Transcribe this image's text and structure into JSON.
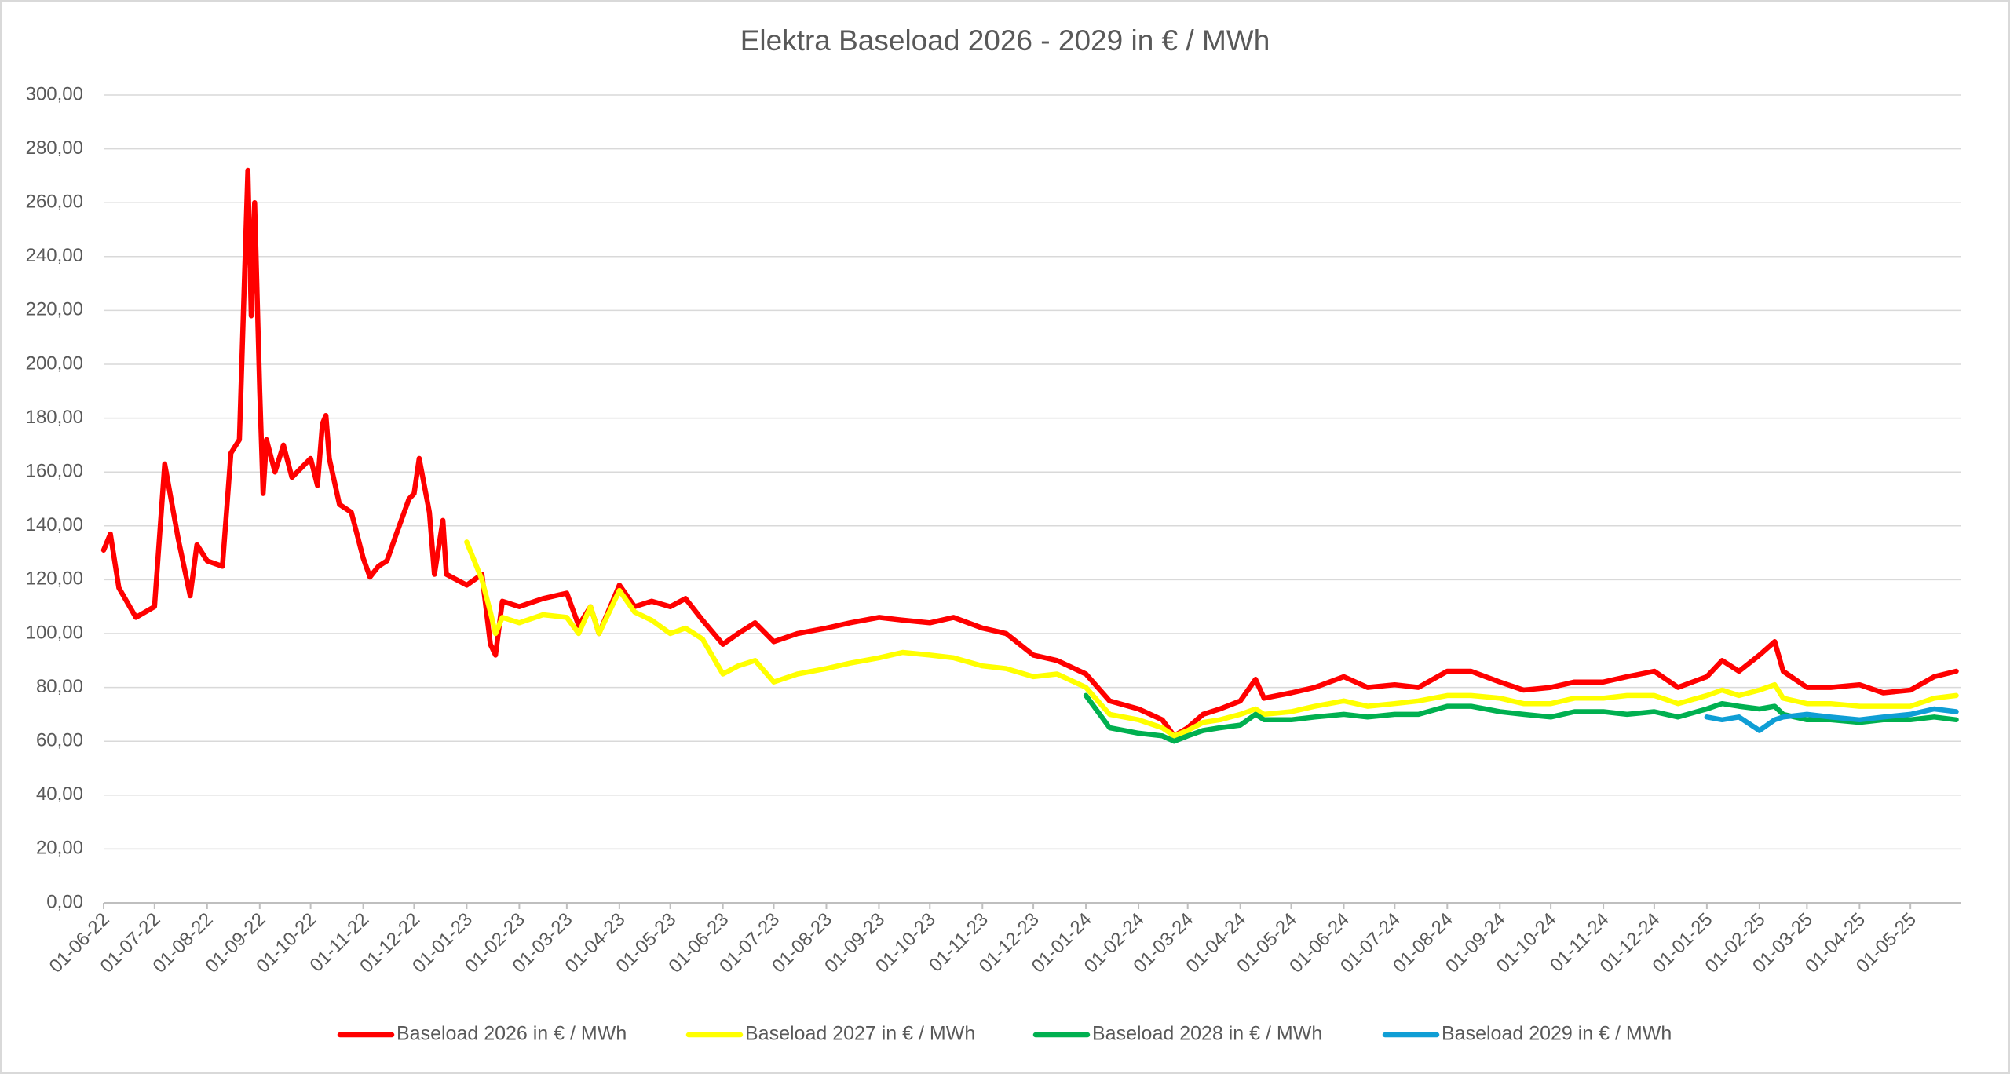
{
  "chart_data": {
    "type": "line",
    "title": "Elektra Baseload 2026 - 2029 in € / MWh",
    "x": [
      "01-06-22",
      "05-06-22",
      "10-06-22",
      "20-06-22",
      "01-07-22",
      "07-07-22",
      "15-07-22",
      "22-07-22",
      "26-07-22",
      "01-08-22",
      "10-08-22",
      "15-08-22",
      "20-08-22",
      "25-08-22",
      "27-08-22",
      "29-08-22",
      "01-09-22",
      "03-09-22",
      "05-09-22",
      "10-09-22",
      "15-09-22",
      "20-09-22",
      "01-10-22",
      "05-10-22",
      "08-10-22",
      "10-10-22",
      "12-10-22",
      "18-10-22",
      "25-10-22",
      "01-11-22",
      "05-11-22",
      "10-11-22",
      "15-11-22",
      "20-11-22",
      "28-11-22",
      "01-12-22",
      "04-12-22",
      "10-12-22",
      "13-12-22",
      "18-12-22",
      "20-12-22",
      "01-01-23",
      "10-01-23",
      "15-01-23",
      "18-01-23",
      "22-01-23",
      "01-02-23",
      "15-02-23",
      "01-03-23",
      "08-03-23",
      "15-03-23",
      "20-03-23",
      "01-04-23",
      "10-04-23",
      "20-04-23",
      "01-05-23",
      "10-05-23",
      "20-05-23",
      "01-06-23",
      "10-06-23",
      "20-06-23",
      "01-07-23",
      "15-07-23",
      "01-08-23",
      "15-08-23",
      "01-09-23",
      "15-09-23",
      "01-10-23",
      "15-10-23",
      "01-11-23",
      "15-11-23",
      "01-12-23",
      "15-12-23",
      "01-01-24",
      "15-01-24",
      "01-02-24",
      "15-02-24",
      "22-02-24",
      "01-03-24",
      "10-03-24",
      "20-03-24",
      "01-04-24",
      "10-04-24",
      "15-04-24",
      "01-05-24",
      "15-05-24",
      "01-06-24",
      "15-06-24",
      "01-07-24",
      "15-07-24",
      "01-08-24",
      "15-08-24",
      "01-09-24",
      "15-09-24",
      "01-10-24",
      "15-10-24",
      "01-11-24",
      "15-11-24",
      "01-12-24",
      "15-12-24",
      "01-01-25",
      "10-01-25",
      "20-01-25",
      "01-02-25",
      "10-02-25",
      "15-02-25",
      "01-03-25",
      "15-03-25",
      "01-04-25",
      "15-04-25",
      "01-05-25",
      "15-05-25",
      "28-05-25"
    ],
    "series": [
      {
        "name": "Baseload 2026 in € / MWh",
        "color": "#ff0000",
        "values": [
          131,
          137,
          117,
          106,
          110,
          163,
          135,
          114,
          133,
          127,
          125,
          167,
          172,
          272,
          218,
          260,
          190,
          152,
          172,
          160,
          170,
          158,
          165,
          155,
          178,
          181,
          165,
          148,
          145,
          128,
          121,
          125,
          127,
          136,
          150,
          152,
          165,
          145,
          122,
          142,
          122,
          118,
          122,
          96,
          92,
          112,
          110,
          113,
          115,
          103,
          110,
          100,
          118,
          110,
          112,
          110,
          113,
          105,
          96,
          100,
          104,
          97,
          100,
          102,
          104,
          106,
          105,
          104,
          106,
          102,
          100,
          92,
          90,
          85,
          75,
          72,
          68,
          62,
          65,
          70,
          72,
          75,
          83,
          76,
          78,
          80,
          84,
          80,
          81,
          80,
          86,
          86,
          82,
          79,
          80,
          82,
          82,
          84,
          86,
          80,
          84,
          90,
          86,
          92,
          97,
          86,
          80,
          80,
          81,
          78,
          79,
          84,
          86
        ]
      },
      {
        "name": "Baseload 2027 in € / MWh",
        "color": "#ffff00",
        "values": [
          null,
          null,
          null,
          null,
          null,
          null,
          null,
          null,
          null,
          null,
          null,
          null,
          null,
          null,
          null,
          null,
          null,
          null,
          null,
          null,
          null,
          null,
          null,
          null,
          null,
          null,
          null,
          null,
          null,
          null,
          null,
          null,
          null,
          null,
          null,
          null,
          null,
          null,
          null,
          null,
          null,
          134,
          120,
          108,
          100,
          106,
          104,
          107,
          106,
          100,
          110,
          100,
          116,
          108,
          105,
          100,
          102,
          98,
          85,
          88,
          90,
          82,
          85,
          87,
          89,
          91,
          93,
          92,
          91,
          88,
          87,
          84,
          85,
          80,
          70,
          68,
          65,
          62,
          64,
          67,
          68,
          70,
          72,
          70,
          71,
          73,
          75,
          73,
          74,
          75,
          77,
          77,
          76,
          74,
          74,
          76,
          76,
          77,
          77,
          74,
          77,
          79,
          77,
          79,
          81,
          76,
          74,
          74,
          73,
          73,
          73,
          76,
          77
        ]
      },
      {
        "name": "Baseload 2028 in € / MWh",
        "color": "#00b050",
        "values": [
          null,
          null,
          null,
          null,
          null,
          null,
          null,
          null,
          null,
          null,
          null,
          null,
          null,
          null,
          null,
          null,
          null,
          null,
          null,
          null,
          null,
          null,
          null,
          null,
          null,
          null,
          null,
          null,
          null,
          null,
          null,
          null,
          null,
          null,
          null,
          null,
          null,
          null,
          null,
          null,
          null,
          null,
          null,
          null,
          null,
          null,
          null,
          null,
          null,
          null,
          null,
          null,
          null,
          null,
          null,
          null,
          null,
          null,
          null,
          null,
          null,
          null,
          null,
          null,
          null,
          null,
          null,
          null,
          null,
          null,
          null,
          null,
          null,
          77,
          65,
          63,
          62,
          60,
          62,
          64,
          65,
          66,
          70,
          68,
          68,
          69,
          70,
          69,
          70,
          70,
          73,
          73,
          71,
          70,
          69,
          71,
          71,
          70,
          71,
          69,
          72,
          74,
          73,
          72,
          73,
          70,
          68,
          68,
          67,
          68,
          68,
          69,
          68
        ]
      },
      {
        "name": "Baseload 2029 in € / MWh",
        "color": "#0f9ed5",
        "values": [
          null,
          null,
          null,
          null,
          null,
          null,
          null,
          null,
          null,
          null,
          null,
          null,
          null,
          null,
          null,
          null,
          null,
          null,
          null,
          null,
          null,
          null,
          null,
          null,
          null,
          null,
          null,
          null,
          null,
          null,
          null,
          null,
          null,
          null,
          null,
          null,
          null,
          null,
          null,
          null,
          null,
          null,
          null,
          null,
          null,
          null,
          null,
          null,
          null,
          null,
          null,
          null,
          null,
          null,
          null,
          null,
          null,
          null,
          null,
          null,
          null,
          null,
          null,
          null,
          null,
          null,
          null,
          null,
          null,
          null,
          null,
          null,
          null,
          null,
          null,
          null,
          null,
          null,
          null,
          null,
          null,
          null,
          null,
          null,
          null,
          null,
          null,
          null,
          null,
          null,
          null,
          null,
          null,
          null,
          null,
          null,
          null,
          null,
          null,
          null,
          69,
          68,
          69,
          64,
          68,
          69,
          70,
          69,
          68,
          69,
          70,
          72,
          71
        ]
      }
    ],
    "xlim": [
      "01-06-22",
      "31-05-25"
    ],
    "xticks": [
      "01-06-22",
      "01-07-22",
      "01-08-22",
      "01-09-22",
      "01-10-22",
      "01-11-22",
      "01-12-22",
      "01-01-23",
      "01-02-23",
      "01-03-23",
      "01-04-23",
      "01-05-23",
      "01-06-23",
      "01-07-23",
      "01-08-23",
      "01-09-23",
      "01-10-23",
      "01-11-23",
      "01-12-23",
      "01-01-24",
      "01-02-24",
      "01-03-24",
      "01-04-24",
      "01-05-24",
      "01-06-24",
      "01-07-24",
      "01-08-24",
      "01-09-24",
      "01-10-24",
      "01-11-24",
      "01-12-24",
      "01-01-25",
      "01-02-25",
      "01-03-25",
      "01-04-25",
      "01-05-25"
    ],
    "ylim": [
      0,
      300
    ],
    "yticks": [
      {
        "value": 0,
        "label": "0,00"
      },
      {
        "value": 20,
        "label": "20,00"
      },
      {
        "value": 40,
        "label": "40,00"
      },
      {
        "value": 60,
        "label": "60,00"
      },
      {
        "value": 80,
        "label": "80,00"
      },
      {
        "value": 100,
        "label": "100,00"
      },
      {
        "value": 120,
        "label": "120,00"
      },
      {
        "value": 140,
        "label": "140,00"
      },
      {
        "value": 160,
        "label": "160,00"
      },
      {
        "value": 180,
        "label": "180,00"
      },
      {
        "value": 200,
        "label": "200,00"
      },
      {
        "value": 220,
        "label": "220,00"
      },
      {
        "value": 240,
        "label": "240,00"
      },
      {
        "value": 260,
        "label": "260,00"
      },
      {
        "value": 280,
        "label": "280,00"
      },
      {
        "value": 300,
        "label": "300,00"
      }
    ],
    "grid": true,
    "legend": "bottom"
  }
}
